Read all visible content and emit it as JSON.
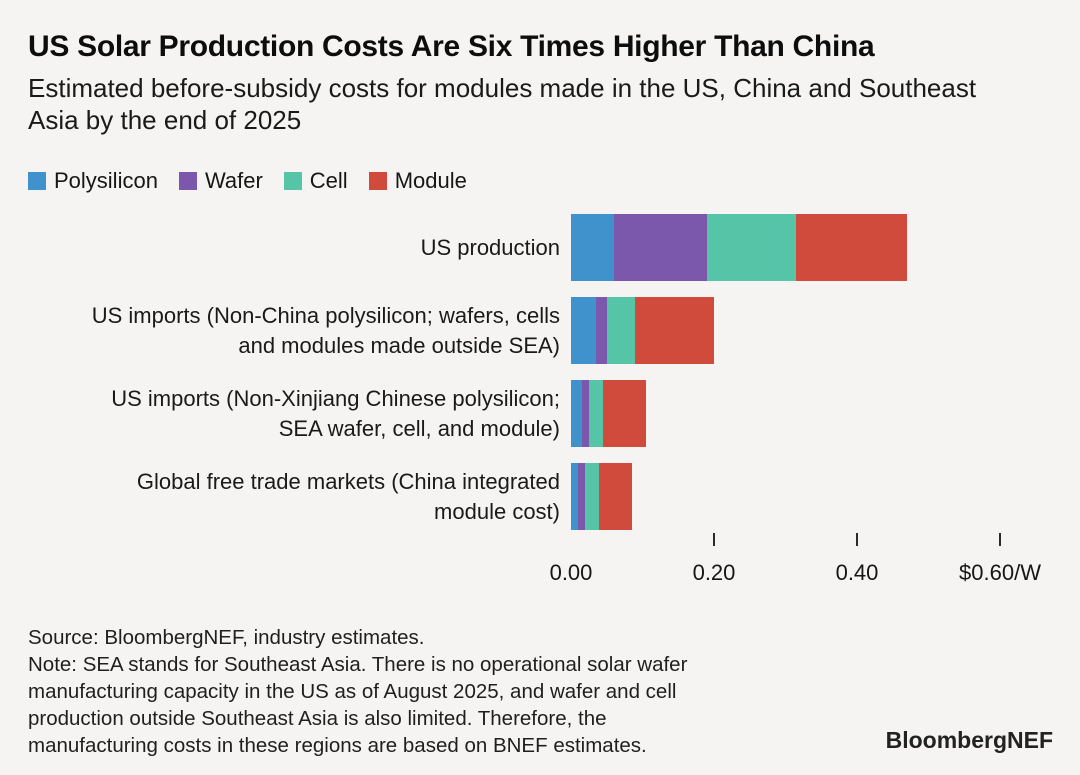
{
  "header": {
    "title": "US Solar Production Costs Are Six Times Higher Than China",
    "subtitle": "Estimated before-subsidy costs for modules made in the US, China and Southeast Asia by the end of 2025"
  },
  "colors": {
    "background": "#f5f4f2",
    "polysilicon": "#3f92cb",
    "wafer": "#7c58ad",
    "cell": "#56c5a7",
    "module": "#d04b3c",
    "tick": "#2b2b2b"
  },
  "chart_data": {
    "type": "bar",
    "orientation": "horizontal",
    "stacked": true,
    "unit": "$/W",
    "title": "US Solar Production Costs Are Six Times Higher Than China",
    "subtitle": "Estimated before-subsidy costs for modules made in the US, China and Southeast Asia by the end of 2025",
    "categories": [
      "US production",
      "US imports (Non-China polysilicon; wafers, cells and modules made outside SEA)",
      "US imports (Non-Xinjiang Chinese polysilicon; SEA wafer, cell, and module)",
      "Global free trade markets (China integrated module cost)"
    ],
    "category_lines": [
      [
        "US production"
      ],
      [
        "US imports (Non-China polysilicon; wafers, cells",
        "and modules made outside SEA)"
      ],
      [
        "US imports (Non-Xinjiang Chinese polysilicon;",
        "SEA wafer, cell, and module)"
      ],
      [
        "Global free trade markets (China integrated",
        "module cost)"
      ]
    ],
    "series": [
      {
        "name": "Polysilicon",
        "color": "#3f92cb",
        "values": [
          0.06,
          0.035,
          0.015,
          0.01
        ]
      },
      {
        "name": "Wafer",
        "color": "#7c58ad",
        "values": [
          0.13,
          0.015,
          0.01,
          0.01
        ]
      },
      {
        "name": "Cell",
        "color": "#56c5a7",
        "values": [
          0.125,
          0.04,
          0.02,
          0.02
        ]
      },
      {
        "name": "Module",
        "color": "#d04b3c",
        "values": [
          0.155,
          0.11,
          0.06,
          0.045
        ]
      }
    ],
    "xlim": [
      0,
      0.6
    ],
    "xticks": [
      {
        "value": 0.0,
        "label": "0.00"
      },
      {
        "value": 0.2,
        "label": "0.20"
      },
      {
        "value": 0.4,
        "label": "0.40"
      },
      {
        "value": 0.6,
        "label": "$0.60/W"
      }
    ],
    "legend_position": "top-left",
    "grid": false
  },
  "footer": {
    "source": "Source: BloombergNEF, industry estimates.",
    "note_lines": [
      "Note: SEA stands for Southeast Asia. There is no operational solar wafer",
      "manufacturing capacity in the US as of August 2025, and wafer and cell",
      "production outside Southeast Asia is also limited. Therefore, the",
      "manufacturing costs in these regions are based on BNEF estimates."
    ],
    "logo": "BloombergNEF"
  }
}
